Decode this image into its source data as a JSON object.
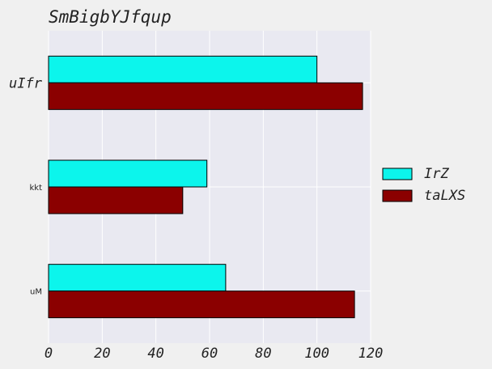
{
  "chart_data": {
    "type": "bar",
    "orientation": "horizontal",
    "title": "SmBigbYJfqup",
    "xlabel": "",
    "ylabel": "",
    "categories": [
      "uIfr",
      "kkt",
      "uM"
    ],
    "category_label_styles": [
      "large-italic-mono",
      "small-sans",
      "small-sans"
    ],
    "series": [
      {
        "name": "IrZ",
        "values": [
          100,
          59,
          66
        ],
        "color": "#0cf5ec"
      },
      {
        "name": "taLXS",
        "values": [
          117,
          50,
          114
        ],
        "color": "#8b0000"
      }
    ],
    "xlim": [
      0,
      120
    ],
    "xticks": [
      0,
      20,
      40,
      60,
      80,
      100,
      120
    ],
    "grid": true,
    "legend": "right",
    "colors": {
      "figure_background": "#f0f0f0",
      "plot_background": "#e9e9f1",
      "grid": "#ffffff",
      "edge": "#000000",
      "text": "#222222"
    }
  }
}
